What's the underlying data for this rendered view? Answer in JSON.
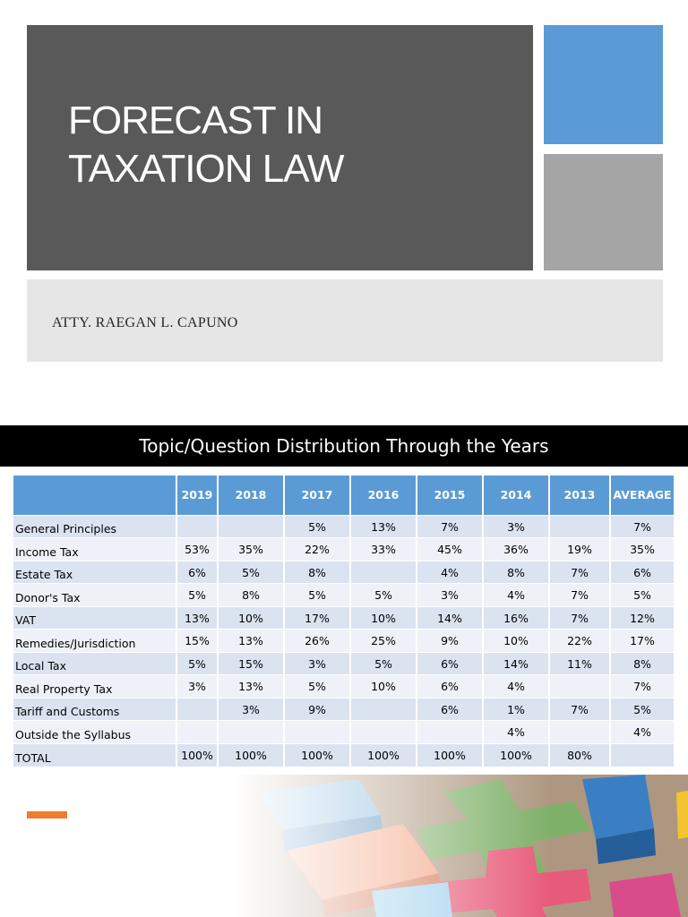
{
  "slide1": {
    "title": "FORECAST IN\nTAXATION LAW",
    "author": "ATTY. RAEGAN L. CAPUNO"
  },
  "slide2": {
    "banner": "Topic/Question Distribution Through the Years",
    "table": {
      "headers": [
        "",
        "2019",
        "2018",
        "2017",
        "2016",
        "2015",
        "2014",
        "2013",
        "AVERAGE"
      ],
      "rows": [
        [
          "General Principles",
          "",
          "",
          "5%",
          "13%",
          "7%",
          "3%",
          "",
          "7%"
        ],
        [
          "Income Tax",
          "53%",
          "35%",
          "22%",
          "33%",
          "45%",
          "36%",
          "19%",
          "35%"
        ],
        [
          "Estate Tax",
          "6%",
          "5%",
          "8%",
          "",
          "4%",
          "8%",
          "7%",
          "6%"
        ],
        [
          "Donor's Tax",
          "5%",
          "8%",
          "5%",
          "5%",
          "3%",
          "4%",
          "7%",
          "5%"
        ],
        [
          "VAT",
          "13%",
          "10%",
          "17%",
          "10%",
          "14%",
          "16%",
          "7%",
          "12%"
        ],
        [
          "Remedies/Jurisdiction",
          "15%",
          "13%",
          "26%",
          "25%",
          "9%",
          "10%",
          "22%",
          "17%"
        ],
        [
          "Local Tax",
          "5%",
          "15%",
          "3%",
          "5%",
          "6%",
          "14%",
          "11%",
          "8%"
        ],
        [
          "Real Property Tax",
          "3%",
          "13%",
          "5%",
          "10%",
          "6%",
          "4%",
          "",
          "7%"
        ],
        [
          "Tariff and Customs",
          "",
          "3%",
          "9%",
          "",
          "6%",
          "1%",
          "7%",
          "5%"
        ],
        [
          "Outside the Syllabus",
          "",
          "",
          "",
          "",
          "",
          "4%",
          "",
          "4%"
        ],
        [
          "TOTAL",
          "100%",
          "100%",
          "100%",
          "100%",
          "100%",
          "100%",
          "80%",
          ""
        ]
      ]
    }
  },
  "colors": {
    "title_box": "#595959",
    "accent_blue": "#5b9bd5",
    "accent_gray": "#a5a5a5",
    "subtitle_box": "#e7e6e6",
    "table_header": "#5b9bd5",
    "row_odd": "#dbe3f1",
    "row_even": "#eef2f8",
    "accent_orange": "#ed7d31"
  },
  "decorations": {
    "blocks_image": "colorful-wooden-puzzle-blocks"
  }
}
